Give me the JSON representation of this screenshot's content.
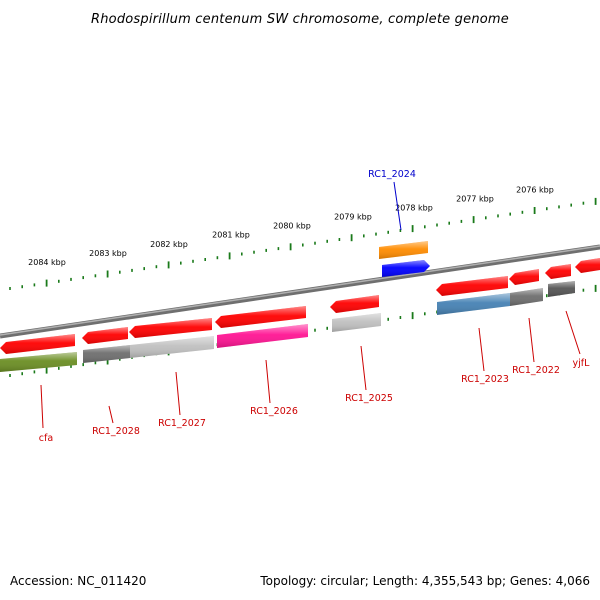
{
  "title": "Rhodospirillum centenum SW chromosome, complete genome",
  "footer": {
    "accession": "Accession: NC_011420",
    "topology": "Topology: circular; Length: 4,355,543 bp; Genes: 4,066"
  },
  "scale_labels": [
    {
      "label": "2084 kbp",
      "kbp": 2084
    },
    {
      "label": "2083 kbp",
      "kbp": 2083
    },
    {
      "label": "2082 kbp",
      "kbp": 2082
    },
    {
      "label": "2081 kbp",
      "kbp": 2081
    },
    {
      "label": "2080 kbp",
      "kbp": 2080
    },
    {
      "label": "2079 kbp",
      "kbp": 2079
    },
    {
      "label": "2078 kbp",
      "kbp": 2078
    },
    {
      "label": "2077 kbp",
      "kbp": 2077
    },
    {
      "label": "2076 kbp",
      "kbp": 2076
    }
  ],
  "colors": {
    "backbone": "#8c8c8c",
    "tick": "#1a7a1a",
    "gene_label": "#cc0000",
    "highlight_label": "#0000cc",
    "red": "#ff0000",
    "orange": "#ff8c00",
    "blue": "#0000ff",
    "steelblue": "#4682b4",
    "darkgray": "#6e6e6e",
    "lightgray": "#c0c0c0",
    "magenta": "#ff1493",
    "olive": "#6b8e23"
  },
  "genes": [
    {
      "name": "cfa",
      "labeled": true
    },
    {
      "name": "RC1_2028",
      "labeled": true
    },
    {
      "name": "RC1_2027",
      "labeled": true
    },
    {
      "name": "RC1_2026",
      "labeled": true
    },
    {
      "name": "RC1_2025",
      "labeled": true
    },
    {
      "name": "RC1_2024",
      "labeled": true,
      "highlight": true
    },
    {
      "name": "RC1_2023",
      "labeled": true
    },
    {
      "name": "RC1_2022",
      "labeled": true
    },
    {
      "name": "yjfL",
      "labeled": true
    }
  ]
}
